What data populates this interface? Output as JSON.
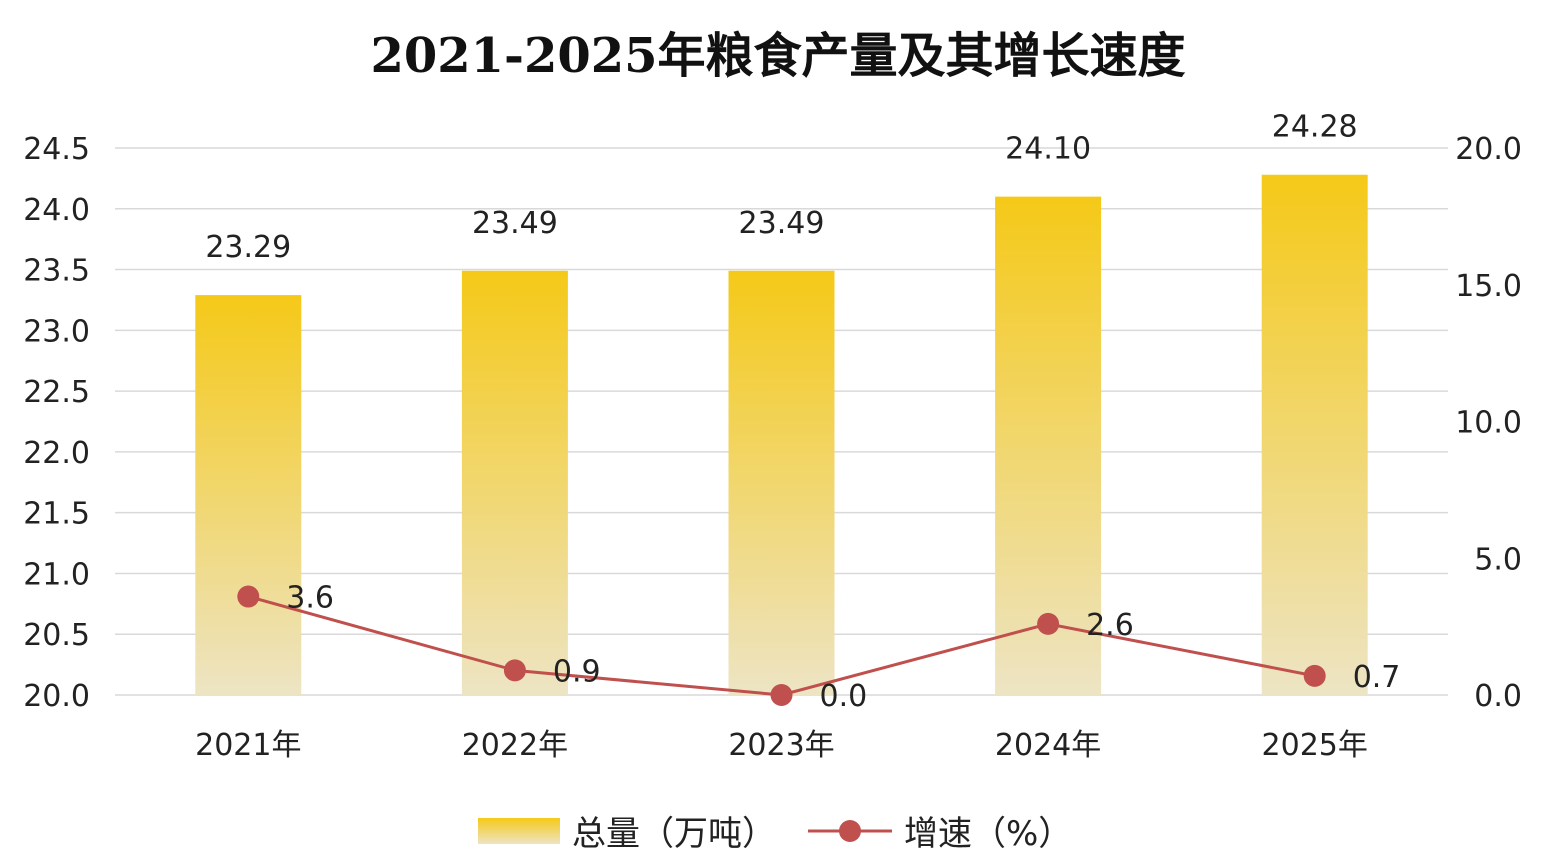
{
  "chart_data": {
    "type": "bar",
    "title": "2021-2025年粮食产量及其增长速度",
    "categories": [
      "2021年",
      "2022年",
      "2023年",
      "2024年",
      "2025年"
    ],
    "series": [
      {
        "name": "总量（万吨）",
        "type": "bar",
        "axis": "left",
        "values": [
          23.29,
          23.49,
          23.49,
          24.1,
          24.28
        ],
        "labels": [
          "23.29",
          "23.49",
          "23.49",
          "24.10",
          "24.28"
        ],
        "color": "#f5c918",
        "color_end": "#ede4c4"
      },
      {
        "name": "增速（%）",
        "type": "line",
        "axis": "right",
        "values": [
          3.6,
          0.9,
          0.0,
          2.6,
          0.7
        ],
        "labels": [
          "3.6",
          "0.9",
          "0.0",
          "2.6",
          "0.7"
        ],
        "color": "#c0504d"
      }
    ],
    "y_left": {
      "min": 20.0,
      "max": 24.5,
      "ticks": [
        "20.0",
        "20.5",
        "21.0",
        "21.5",
        "22.0",
        "22.5",
        "23.0",
        "23.5",
        "24.0",
        "24.5"
      ]
    },
    "y_right": {
      "min": 0.0,
      "max": 20.0,
      "ticks": [
        "0.0",
        "5.0",
        "10.0",
        "15.0",
        "20.0"
      ]
    },
    "grid": true,
    "legend_position": "bottom"
  }
}
